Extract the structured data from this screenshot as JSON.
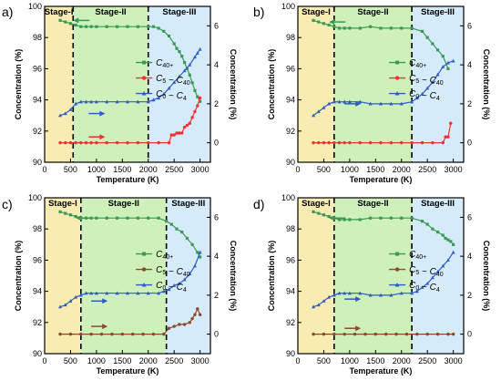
{
  "figure": {
    "y_left_label": "Concentration (%)",
    "y_right_label": "Concentration (%)",
    "x_label": "Temperature (K)"
  },
  "colors": {
    "c40": "#3a9a55",
    "c5": "#e8342f",
    "c0": "#2f5cc4",
    "c5_dark": "#8a4b2a",
    "stage1": "#f7e9a6",
    "stage2": "#c5efb0",
    "stage3": "#cfe7f8"
  },
  "chart_data": [
    {
      "panel_label": "a)",
      "type": "line",
      "xlim": [
        0,
        3200
      ],
      "xticks": [
        0,
        500,
        1000,
        1500,
        2000,
        2500,
        3000
      ],
      "ylim_left": [
        90,
        100
      ],
      "yticks_left": [
        90,
        92,
        94,
        96,
        98,
        100
      ],
      "ylim_right": [
        -1,
        7
      ],
      "yticks_right": [
        0,
        2,
        4,
        6
      ],
      "stages": [
        {
          "label": "Stage-I",
          "from": 0,
          "to": 550
        },
        {
          "label": "Stage-II",
          "from": 550,
          "to": 2000
        },
        {
          "label": "Stage-III",
          "from": 2000,
          "to": 3200
        }
      ],
      "arrows": [
        {
          "series": "C40+",
          "direction": "left",
          "x": 550,
          "y": 99.1,
          "axis": "left"
        },
        {
          "series": "C0 ~ C4",
          "direction": "right",
          "x": 850,
          "y": 1.5,
          "axis": "right"
        },
        {
          "series": "C5 ~ C40",
          "direction": "right",
          "x": 850,
          "y": 0.3,
          "axis": "right"
        }
      ],
      "series": [
        {
          "name": "C40+",
          "axis": "left",
          "color_key": "c40",
          "x": [
            300,
            400,
            500,
            600,
            700,
            800,
            900,
            1000,
            1200,
            1400,
            1600,
            1800,
            2000,
            2100,
            2200,
            2300,
            2400,
            2500,
            2550,
            2600,
            2650,
            2700,
            2750,
            2800,
            2850,
            2900,
            2950,
            3000
          ],
          "y": [
            99.1,
            99.0,
            98.9,
            98.8,
            98.7,
            98.7,
            98.7,
            98.7,
            98.7,
            98.7,
            98.7,
            98.7,
            98.7,
            98.7,
            98.6,
            98.4,
            98.1,
            97.6,
            97.3,
            97.1,
            96.8,
            96.4,
            96.0,
            95.6,
            95.1,
            94.6,
            94.2,
            93.9
          ]
        },
        {
          "name": "C5 ~ C40",
          "axis": "right",
          "color_key": "c5",
          "x": [
            300,
            400,
            500,
            600,
            700,
            800,
            900,
            1000,
            1200,
            1400,
            1600,
            1800,
            2000,
            2200,
            2400,
            2450,
            2500,
            2550,
            2600,
            2650,
            2700,
            2750,
            2800,
            2850,
            2900,
            2950,
            3000
          ],
          "y": [
            0,
            0,
            0,
            0,
            0,
            0,
            0,
            0,
            0,
            0,
            0,
            0,
            0,
            0,
            0,
            0.4,
            0.4,
            0.5,
            0.5,
            0.5,
            0.8,
            0.9,
            1.0,
            1.3,
            1.6,
            1.9,
            2.3
          ]
        },
        {
          "name": "C0 ~ C4",
          "axis": "right",
          "color_key": "c0",
          "x": [
            300,
            400,
            500,
            600,
            700,
            800,
            900,
            1000,
            1200,
            1400,
            1600,
            1800,
            2000,
            2100,
            2200,
            2300,
            2400,
            2500,
            2600,
            2700,
            2800,
            2900,
            2950,
            3000
          ],
          "y": [
            1.4,
            1.5,
            1.7,
            2.0,
            2.1,
            2.1,
            2.1,
            2.1,
            2.1,
            2.1,
            2.1,
            2.1,
            2.1,
            2.2,
            2.3,
            2.5,
            2.8,
            3.1,
            3.4,
            3.7,
            4.0,
            4.4,
            4.6,
            4.8
          ]
        }
      ]
    },
    {
      "panel_label": "b)",
      "type": "line",
      "xlim": [
        0,
        3200
      ],
      "xticks": [
        0,
        500,
        1000,
        1500,
        2000,
        2500,
        3000
      ],
      "ylim_left": [
        90,
        100
      ],
      "yticks_left": [
        90,
        92,
        94,
        96,
        98,
        100
      ],
      "ylim_right": [
        -1,
        7
      ],
      "yticks_right": [
        0,
        2,
        4,
        6
      ],
      "stages": [
        {
          "label": "Stage-I",
          "from": 0,
          "to": 700
        },
        {
          "label": "Stage-II",
          "from": 700,
          "to": 2200
        },
        {
          "label": "Stage-III",
          "from": 2200,
          "to": 3200
        }
      ],
      "arrows": [
        {
          "series": "C40+",
          "direction": "left",
          "x": 600,
          "y": 99.0,
          "axis": "left"
        },
        {
          "series": "C0 ~ C4",
          "direction": "right",
          "x": 900,
          "y": 2.0,
          "axis": "right"
        }
      ],
      "series": [
        {
          "name": "C40+",
          "axis": "left",
          "color_key": "c40",
          "x": [
            300,
            400,
            500,
            600,
            700,
            800,
            900,
            1000,
            1200,
            1400,
            1600,
            1800,
            2000,
            2200,
            2400,
            2500,
            2600,
            2700,
            2800,
            2900
          ],
          "y": [
            99.1,
            99.0,
            98.9,
            98.8,
            98.7,
            98.6,
            98.6,
            98.6,
            98.6,
            98.7,
            98.6,
            98.6,
            98.6,
            98.6,
            98.4,
            98.0,
            97.6,
            97.2,
            96.8,
            96.0
          ]
        },
        {
          "name": "C5 ~ C40",
          "axis": "right",
          "color_key": "c5",
          "x": [
            300,
            400,
            500,
            600,
            700,
            800,
            900,
            1000,
            1200,
            1400,
            1600,
            1800,
            2000,
            2200,
            2400,
            2600,
            2800,
            2850,
            2900,
            2950
          ],
          "y": [
            0,
            0,
            0,
            0,
            0,
            0,
            0,
            0,
            0,
            0,
            0,
            0,
            0,
            0,
            0,
            0,
            0,
            0.3,
            0.3,
            1.0
          ]
        },
        {
          "name": "C0 ~ C4",
          "axis": "right",
          "color_key": "c0",
          "x": [
            300,
            400,
            500,
            600,
            700,
            800,
            900,
            1000,
            1200,
            1400,
            1600,
            1800,
            2000,
            2200,
            2300,
            2400,
            2500,
            2600,
            2700,
            2800,
            2900,
            3000
          ],
          "y": [
            1.4,
            1.6,
            1.8,
            2.0,
            2.1,
            2.1,
            2.1,
            2.1,
            2.1,
            2.0,
            2.0,
            2.0,
            2.0,
            2.1,
            2.3,
            2.5,
            2.8,
            3.1,
            3.5,
            3.9,
            4.1,
            4.2
          ]
        }
      ]
    },
    {
      "panel_label": "c)",
      "type": "line",
      "xlim": [
        0,
        3200
      ],
      "xticks": [
        0,
        500,
        1000,
        1500,
        2000,
        2500,
        3000
      ],
      "ylim_left": [
        90,
        100
      ],
      "yticks_left": [
        90,
        92,
        94,
        96,
        98,
        100
      ],
      "ylim_right": [
        -1,
        7
      ],
      "yticks_right": [
        0,
        2,
        4,
        6
      ],
      "stages": [
        {
          "label": "Stage-I",
          "from": 0,
          "to": 700
        },
        {
          "label": "Stage-II",
          "from": 700,
          "to": 2350
        },
        {
          "label": "Stage-III",
          "from": 2350,
          "to": 3200
        }
      ],
      "arrows": [
        {
          "series": "C40+",
          "direction": "left",
          "x": 600,
          "y": 98.7,
          "axis": "left"
        },
        {
          "series": "C0 ~ C4",
          "direction": "right",
          "x": 900,
          "y": 1.7,
          "axis": "right"
        },
        {
          "series": "C5 ~ C40",
          "direction": "right",
          "x": 900,
          "y": 0.4,
          "axis": "right"
        }
      ],
      "series": [
        {
          "name": "C40+",
          "axis": "left",
          "color_key": "c40",
          "x": [
            300,
            400,
            500,
            600,
            700,
            800,
            900,
            1000,
            1200,
            1400,
            1600,
            1800,
            2000,
            2200,
            2350,
            2450,
            2550,
            2650,
            2750,
            2850,
            2950,
            3000
          ],
          "y": [
            99.1,
            99.0,
            98.9,
            98.8,
            98.7,
            98.7,
            98.7,
            98.7,
            98.7,
            98.7,
            98.7,
            98.7,
            98.7,
            98.7,
            98.5,
            98.3,
            98.0,
            97.8,
            97.4,
            97.0,
            96.5,
            96.2
          ]
        },
        {
          "name": "C5 ~ C40",
          "axis": "right",
          "color_key": "c5_dark",
          "x": [
            300,
            500,
            700,
            900,
            1100,
            1300,
            1500,
            1700,
            1900,
            2100,
            2300,
            2400,
            2500,
            2600,
            2700,
            2800,
            2850,
            2900,
            2950,
            3000
          ],
          "y": [
            0,
            0,
            0,
            0,
            0,
            0,
            0,
            0,
            0,
            0,
            0,
            0.3,
            0.4,
            0.5,
            0.5,
            0.6,
            0.8,
            1.0,
            1.3,
            1.0
          ]
        },
        {
          "name": "C0 ~ C4",
          "axis": "right",
          "color_key": "c0",
          "x": [
            300,
            400,
            500,
            600,
            700,
            800,
            900,
            1000,
            1200,
            1400,
            1600,
            1800,
            2000,
            2200,
            2300,
            2400,
            2500,
            2600,
            2700,
            2800,
            2900,
            3000
          ],
          "y": [
            1.4,
            1.5,
            1.7,
            1.9,
            2.0,
            2.1,
            2.1,
            2.1,
            2.1,
            2.1,
            2.1,
            2.1,
            2.1,
            2.1,
            2.2,
            2.3,
            2.5,
            2.6,
            2.8,
            3.1,
            3.5,
            4.2
          ]
        }
      ]
    },
    {
      "panel_label": "d)",
      "type": "line",
      "xlim": [
        0,
        3200
      ],
      "xticks": [
        0,
        500,
        1000,
        1500,
        2000,
        2500,
        3000
      ],
      "ylim_left": [
        90,
        100
      ],
      "yticks_left": [
        90,
        92,
        94,
        96,
        98,
        100
      ],
      "ylim_right": [
        -1,
        7
      ],
      "yticks_right": [
        0,
        2,
        4,
        6
      ],
      "stages": [
        {
          "label": "Stage-I",
          "from": 0,
          "to": 700
        },
        {
          "label": "Stage-II",
          "from": 700,
          "to": 2200
        },
        {
          "label": "Stage-III",
          "from": 2200,
          "to": 3200
        }
      ],
      "arrows": [
        {
          "series": "C40+",
          "direction": "left",
          "x": 600,
          "y": 98.7,
          "axis": "left"
        },
        {
          "series": "C0 ~ C4",
          "direction": "right",
          "x": 900,
          "y": 1.8,
          "axis": "right"
        },
        {
          "series": "C5 ~ C40",
          "direction": "right",
          "x": 900,
          "y": 0.3,
          "axis": "right"
        }
      ],
      "series": [
        {
          "name": "C40+",
          "axis": "left",
          "color_key": "c40",
          "x": [
            300,
            400,
            500,
            600,
            700,
            800,
            900,
            1000,
            1200,
            1400,
            1600,
            1800,
            2000,
            2200,
            2400,
            2500,
            2600,
            2700,
            2800,
            2850,
            2900,
            2950,
            3000
          ],
          "y": [
            99.1,
            99.0,
            98.9,
            98.8,
            98.7,
            98.6,
            98.6,
            98.6,
            98.6,
            98.7,
            98.7,
            98.7,
            98.7,
            98.7,
            98.5,
            98.3,
            98.0,
            97.8,
            97.6,
            97.4,
            97.3,
            97.2,
            97.0
          ]
        },
        {
          "name": "C5 ~ C40",
          "axis": "right",
          "color_key": "c5_dark",
          "x": [
            300,
            500,
            700,
            900,
            1100,
            1300,
            1500,
            1700,
            1900,
            2100,
            2300,
            2500,
            2700,
            2900,
            3000
          ],
          "y": [
            0,
            0,
            0,
            0,
            0,
            0,
            0,
            0,
            0,
            0,
            0,
            0,
            0,
            0,
            0
          ]
        },
        {
          "name": "C0 ~ C4",
          "axis": "right",
          "color_key": "c0",
          "x": [
            300,
            400,
            500,
            600,
            700,
            800,
            900,
            1000,
            1200,
            1400,
            1600,
            1800,
            2000,
            2200,
            2300,
            2400,
            2500,
            2600,
            2700,
            2800,
            2900,
            3000
          ],
          "y": [
            1.4,
            1.5,
            1.7,
            1.9,
            2.0,
            2.1,
            2.1,
            2.1,
            2.1,
            2.0,
            2.0,
            2.0,
            2.1,
            2.1,
            2.2,
            2.4,
            2.6,
            2.9,
            3.2,
            3.5,
            3.8,
            4.2
          ]
        }
      ]
    }
  ]
}
